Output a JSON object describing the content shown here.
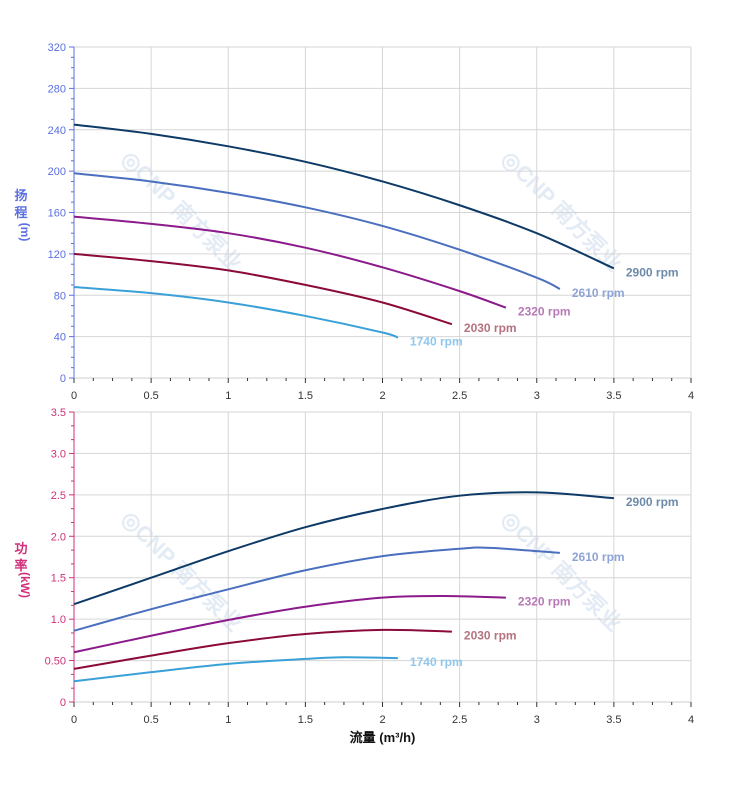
{
  "watermark": "CNP 南方泵业",
  "chart_data": [
    {
      "type": "line",
      "ylabel": [
        "扬",
        "程",
        "(m)"
      ],
      "xlabel": "",
      "xlim": [
        0,
        4
      ],
      "ylim": [
        0,
        320
      ],
      "xticks": [
        "0",
        "0.5",
        "1",
        "1.5",
        "2",
        "2.5",
        "3",
        "3.5",
        "4"
      ],
      "yticks": [
        "0",
        "40",
        "80",
        "120",
        "160",
        "200",
        "240",
        "280",
        "320"
      ],
      "grid": true,
      "axis_color": "#5b6fe0",
      "series": [
        {
          "name": "2900 rpm",
          "color": "#0d3a66",
          "label_color": "#6d8aa8",
          "x": [
            0,
            0.5,
            1,
            1.5,
            2,
            2.5,
            3,
            3.5
          ],
          "y": [
            245,
            236,
            224,
            209,
            190,
            167,
            140,
            106
          ]
        },
        {
          "name": "2610 rpm",
          "color": "#4a6fbf",
          "label_color": "#8fa3d6",
          "x": [
            0,
            0.5,
            1,
            1.5,
            2,
            2.5,
            3,
            3.15
          ],
          "y": [
            198,
            190,
            179,
            165,
            147,
            124,
            97,
            86
          ]
        },
        {
          "name": "2320 rpm",
          "color": "#8b1a8b",
          "label_color": "#b77ab7",
          "x": [
            0,
            0.5,
            1,
            1.5,
            2,
            2.5,
            2.8
          ],
          "y": [
            156,
            149,
            140,
            126,
            107,
            84,
            68
          ]
        },
        {
          "name": "2030 rpm",
          "color": "#8b0a3a",
          "label_color": "#b5727f",
          "x": [
            0,
            0.5,
            1,
            1.5,
            2,
            2.45
          ],
          "y": [
            120,
            113,
            104,
            90,
            73,
            52
          ]
        },
        {
          "name": "1740 rpm",
          "color": "#3aa0d8",
          "label_color": "#8fc8ec",
          "x": [
            0,
            0.5,
            1,
            1.5,
            2,
            2.1
          ],
          "y": [
            88,
            82,
            73,
            60,
            44,
            39
          ]
        }
      ]
    },
    {
      "type": "line",
      "ylabel": [
        "功",
        "率",
        "(kW)"
      ],
      "xlabel": "流量 (m³/h)",
      "xlim": [
        0,
        4
      ],
      "ylim": [
        0,
        3.5
      ],
      "xticks": [
        "0",
        "0.5",
        "1",
        "1.5",
        "2",
        "2.5",
        "3",
        "3.5",
        "4"
      ],
      "yticks": [
        "0",
        "0.50",
        "1.0",
        "1.5",
        "2.0",
        "2.5",
        "3.0",
        "3.5"
      ],
      "grid": true,
      "axis_color": "#d0307a",
      "series": [
        {
          "name": "2900 rpm",
          "color": "#0d3a66",
          "label_color": "#6d8aa8",
          "x": [
            0,
            0.5,
            1,
            1.5,
            2,
            2.5,
            3,
            3.5
          ],
          "y": [
            1.18,
            1.5,
            1.82,
            2.11,
            2.33,
            2.49,
            2.53,
            2.46
          ]
        },
        {
          "name": "2610 rpm",
          "color": "#4a6fbf",
          "label_color": "#8fa3d6",
          "x": [
            0,
            0.5,
            1,
            1.5,
            2,
            2.5,
            2.7,
            3.15
          ],
          "y": [
            0.86,
            1.12,
            1.36,
            1.59,
            1.76,
            1.85,
            1.86,
            1.8
          ]
        },
        {
          "name": "2320 rpm",
          "color": "#8b1a8b",
          "label_color": "#b77ab7",
          "x": [
            0,
            0.5,
            1,
            1.5,
            2,
            2.4,
            2.8
          ],
          "y": [
            0.6,
            0.8,
            0.99,
            1.15,
            1.26,
            1.28,
            1.26
          ]
        },
        {
          "name": "2030 rpm",
          "color": "#8b0a3a",
          "label_color": "#b5727f",
          "x": [
            0,
            0.5,
            1,
            1.5,
            2,
            2.45
          ],
          "y": [
            0.4,
            0.56,
            0.71,
            0.82,
            0.87,
            0.85
          ]
        },
        {
          "name": "1740 rpm",
          "color": "#3aa0d8",
          "label_color": "#8fc8ec",
          "x": [
            0,
            0.5,
            1,
            1.5,
            1.75,
            2.1
          ],
          "y": [
            0.25,
            0.36,
            0.46,
            0.52,
            0.54,
            0.53
          ]
        }
      ]
    }
  ]
}
